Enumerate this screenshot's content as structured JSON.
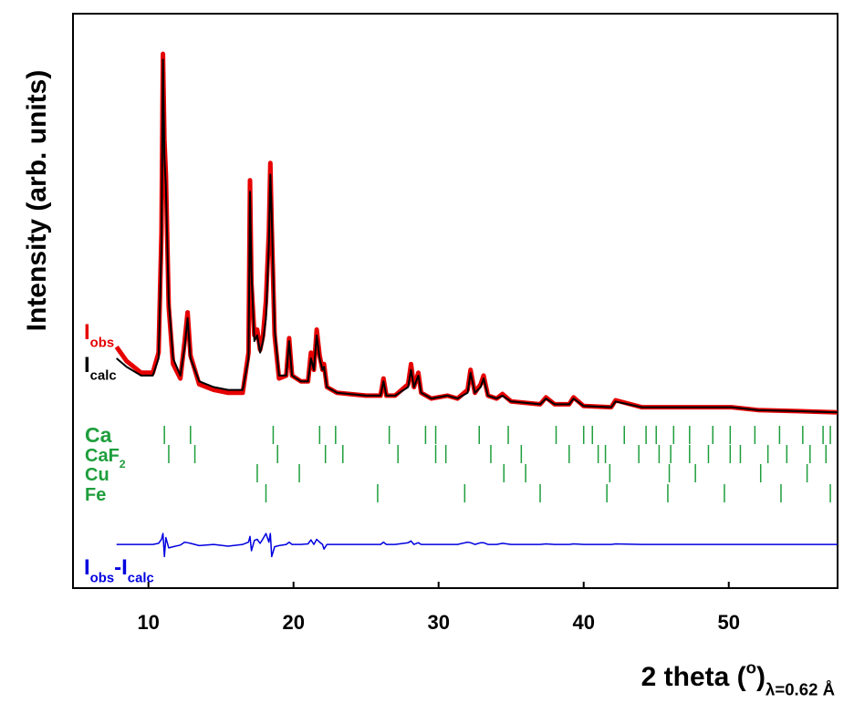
{
  "chart_data": {
    "type": "line",
    "y_label": "Intensity (arb. units)",
    "x_label": [
      {
        "text": "2 theta ("
      },
      {
        "text": "o",
        "sup": true
      },
      {
        "text": ")"
      },
      {
        "text": "λ=0.62 Å",
        "sub": true
      }
    ],
    "xlim": [
      4.8,
      57.5
    ],
    "ylim": [
      0,
      100
    ],
    "xticks": [
      10,
      20,
      30,
      40,
      50
    ],
    "x": [
      7.8,
      8.5,
      9.5,
      10.3,
      10.7,
      10.9,
      11.0,
      11.1,
      11.2,
      11.4,
      11.7,
      12.2,
      12.5,
      12.7,
      12.9,
      13.5,
      14.5,
      15.5,
      16.5,
      16.9,
      17.0,
      17.1,
      17.3,
      17.5,
      17.7,
      17.9,
      18.1,
      18.3,
      18.4,
      18.5,
      18.7,
      19.0,
      19.5,
      19.7,
      19.9,
      20.5,
      21.0,
      21.2,
      21.4,
      21.6,
      21.8,
      22.0,
      22.1,
      22.3,
      23.0,
      25.0,
      26.0,
      26.2,
      26.4,
      27.0,
      27.9,
      28.1,
      28.3,
      28.6,
      28.8,
      29.5,
      30.6,
      31.3,
      32.0,
      32.2,
      32.5,
      32.9,
      33.1,
      33.4,
      34.0,
      34.4,
      35.0,
      37.0,
      37.4,
      38.0,
      39.0,
      39.3,
      40.0,
      41.9,
      42.2,
      44.0,
      45.1,
      47.8,
      50.2,
      52.0,
      55.0,
      57.5
    ],
    "series": [
      {
        "label": [
          {
            "text": "I"
          },
          {
            "text": "obs",
            "sub": true
          }
        ],
        "color": "#e60000",
        "width": 5,
        "values": [
          42,
          39.5,
          37.5,
          37.5,
          41,
          62,
          93,
          78,
          72,
          49,
          39,
          36.5,
          43,
          48,
          40.5,
          35.5,
          34.5,
          34,
          34,
          41,
          71,
          53,
          44,
          45,
          41.5,
          44,
          50,
          62,
          74,
          63,
          44,
          36.5,
          37,
          43.5,
          37,
          36,
          36,
          41,
          38,
          45,
          40.5,
          38,
          39,
          35,
          34,
          33.5,
          33.5,
          36.5,
          33.5,
          33.5,
          35.5,
          39,
          35,
          37.5,
          34,
          33,
          33.5,
          33,
          34.5,
          38,
          34,
          35.5,
          37,
          33.5,
          33,
          33.8,
          32.5,
          32,
          33.2,
          32,
          32,
          33.2,
          31.7,
          31.5,
          32.7,
          31.5,
          31.5,
          31.5,
          31.5,
          31,
          30.8,
          30.6
        ]
      },
      {
        "label": [
          {
            "text": "I"
          },
          {
            "text": "calc",
            "sub": true
          }
        ],
        "color": "#000000",
        "width": 2,
        "values": [
          40,
          38.5,
          37,
          37,
          40,
          60,
          92,
          75,
          70,
          50,
          40,
          37,
          42,
          47,
          40,
          36,
          35,
          34.5,
          34.5,
          40,
          69,
          55,
          43,
          44,
          41,
          43,
          47,
          60,
          72,
          65,
          45,
          37,
          37,
          43,
          37,
          36,
          36,
          40,
          38,
          44,
          40,
          38,
          38.5,
          35,
          34,
          33.5,
          33.5,
          36,
          33.5,
          33.5,
          35,
          38,
          35,
          37,
          34,
          33,
          33.5,
          33,
          34,
          37.5,
          34,
          35,
          36.5,
          33.5,
          33,
          33.5,
          32.5,
          32,
          33,
          32,
          32,
          33,
          31.7,
          31.5,
          32.5,
          31.5,
          31.5,
          31.5,
          31.5,
          31,
          30.8,
          30.6
        ]
      },
      {
        "label": [
          {
            "text": "I"
          },
          {
            "text": "obs",
            "sub": true
          },
          {
            "text": "-I"
          },
          {
            "text": "calc",
            "sub": true
          }
        ],
        "color": "#0000e0",
        "width": 1.5,
        "values": [
          7.6,
          7.6,
          7.6,
          7.6,
          7.8,
          8.5,
          9.5,
          5.5,
          8.8,
          7.0,
          7.2,
          7.5,
          8.0,
          7.9,
          7.8,
          7.4,
          7.6,
          7.3,
          7.6,
          8.0,
          9.0,
          6.5,
          8.3,
          8.5,
          7.8,
          8.6,
          9.5,
          8.0,
          9.5,
          5.5,
          7.2,
          7.4,
          7.6,
          8.0,
          7.6,
          7.6,
          7.7,
          8.4,
          7.6,
          8.5,
          8.0,
          7.6,
          6.8,
          7.6,
          7.6,
          7.6,
          7.6,
          8.0,
          7.6,
          7.6,
          7.9,
          8.2,
          7.6,
          7.9,
          7.6,
          7.6,
          7.6,
          7.6,
          8.0,
          7.9,
          7.6,
          7.9,
          7.9,
          7.6,
          7.6,
          7.8,
          7.6,
          7.6,
          7.7,
          7.6,
          7.6,
          7.7,
          7.6,
          7.6,
          7.7,
          7.6,
          7.6,
          7.6,
          7.6,
          7.6,
          7.6,
          7.6
        ]
      }
    ],
    "phase_color": "#1e9e3c",
    "phases": [
      {
        "label": [
          {
            "text": "Ca"
          }
        ],
        "positions": [
          11.1,
          12.9,
          18.6,
          21.8,
          22.9,
          26.6,
          29.1,
          29.8,
          32.8,
          34.8,
          38.1,
          40.0,
          40.6,
          42.8,
          44.3,
          45.0,
          46.2,
          47.3,
          48.9,
          50.1,
          51.8,
          53.5,
          55.1,
          56.5,
          57.0
        ]
      },
      {
        "label": [
          {
            "text": "CaF"
          },
          {
            "text": "2",
            "sub": true
          }
        ],
        "positions": [
          11.4,
          13.2,
          18.9,
          22.2,
          23.4,
          27.2,
          29.8,
          30.5,
          33.6,
          35.7,
          39.0,
          41.0,
          41.5,
          43.8,
          45.2,
          46.0,
          47.3,
          48.6,
          50.1,
          50.8,
          52.7,
          54.0,
          55.6,
          56.7
        ]
      },
      {
        "label": [
          {
            "text": "Cu"
          }
        ],
        "positions": [
          17.5,
          20.4,
          34.5,
          36.0,
          41.8,
          45.9,
          47.7,
          52.2,
          55.4
        ]
      },
      {
        "label": [
          {
            "text": "Fe"
          }
        ],
        "positions": [
          18.1,
          25.8,
          31.8,
          37.0,
          41.6,
          45.8,
          49.7,
          53.6,
          57.0
        ]
      }
    ]
  }
}
